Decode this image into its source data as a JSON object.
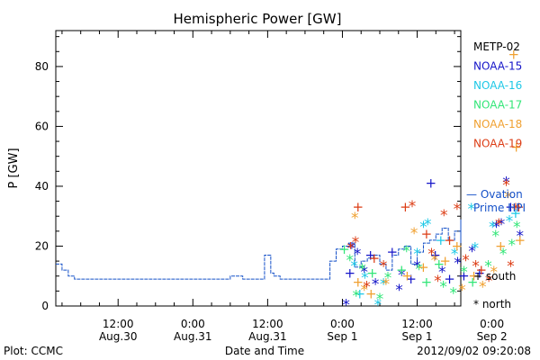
{
  "chart_data": {
    "type": "scatter",
    "title": "Hemispheric Power [GW]",
    "ylabel": "P [GW]",
    "xlabel": "Date and Time",
    "ylim": [
      0,
      92
    ],
    "yticks": [
      0,
      20,
      40,
      60,
      80
    ],
    "xlim_hours_from_aug30_0000": [
      2,
      67
    ],
    "xticks": [
      {
        "h": 12,
        "line1": "12:00",
        "line2": "Aug.30"
      },
      {
        "h": 24,
        "line1": "0:00",
        "line2": "Aug.31"
      },
      {
        "h": 36,
        "line1": "12:00",
        "line2": "Aug.31"
      },
      {
        "h": 48,
        "line1": "0:00",
        "line2": "Sep 1"
      },
      {
        "h": 60,
        "line1": "12:00",
        "line2": "Sep 1"
      },
      {
        "h": 72,
        "line1": "0:00",
        "line2": "Sep 2"
      }
    ],
    "legend": {
      "placement": "right",
      "entries": [
        {
          "name": "METP-02",
          "color": "#000000"
        },
        {
          "name": "NOAA-15",
          "color": "#1414c8"
        },
        {
          "name": "NOAA-16",
          "color": "#1ec8e6"
        },
        {
          "name": "NOAA-17",
          "color": "#32e678"
        },
        {
          "name": "NOAA-18",
          "color": "#f0a030"
        },
        {
          "name": "NOAA-19",
          "color": "#dc3c14"
        }
      ],
      "ovation_line1": "— Ovation",
      "ovation_line2": "Prime HPI",
      "ovation_color": "#1450c8",
      "south_label": "+ south",
      "north_label": "* north"
    },
    "ovation_series": {
      "name": "Ovation Prime HPI",
      "points": [
        [
          2,
          14
        ],
        [
          3,
          12
        ],
        [
          4,
          10
        ],
        [
          5,
          9
        ],
        [
          14,
          9
        ],
        [
          24,
          9
        ],
        [
          30,
          10
        ],
        [
          32,
          9
        ],
        [
          35,
          9
        ],
        [
          35.5,
          17
        ],
        [
          36.5,
          11
        ],
        [
          37,
          10
        ],
        [
          38,
          9
        ],
        [
          44,
          9
        ],
        [
          46,
          15
        ],
        [
          47,
          19
        ],
        [
          48,
          20
        ],
        [
          49,
          21
        ],
        [
          50,
          13
        ],
        [
          51,
          15
        ],
        [
          52,
          16
        ],
        [
          53,
          17
        ],
        [
          54,
          14
        ],
        [
          55,
          12
        ],
        [
          56,
          17
        ],
        [
          57,
          19
        ],
        [
          58,
          20
        ],
        [
          59,
          14
        ],
        [
          60,
          18
        ],
        [
          61,
          21
        ],
        [
          62,
          22
        ],
        [
          63,
          24
        ],
        [
          64,
          26
        ],
        [
          65,
          22
        ],
        [
          66,
          25
        ],
        [
          67,
          21
        ],
        [
          68,
          26
        ],
        [
          69,
          24
        ],
        [
          70,
          27
        ],
        [
          71,
          24
        ],
        [
          72,
          28
        ],
        [
          73,
          26
        ],
        [
          74,
          29
        ],
        [
          75,
          26
        ],
        [
          76,
          28
        ],
        [
          77,
          23
        ]
      ]
    },
    "scatter_points": [
      {
        "x": 48.6,
        "y": 1,
        "sat": "NOAA-15",
        "hemi": "north"
      },
      {
        "x": 49.2,
        "y": 11,
        "sat": "NOAA-15",
        "hemi": "south"
      },
      {
        "x": 49.5,
        "y": 20,
        "sat": "NOAA-15",
        "hemi": "north"
      },
      {
        "x": 50.4,
        "y": 18,
        "sat": "NOAA-15",
        "hemi": "north"
      },
      {
        "x": 51.5,
        "y": 12,
        "sat": "NOAA-15",
        "hemi": "north"
      },
      {
        "x": 52.5,
        "y": 17,
        "sat": "NOAA-15",
        "hemi": "south"
      },
      {
        "x": 53.3,
        "y": 8,
        "sat": "NOAA-15",
        "hemi": "north"
      },
      {
        "x": 56.0,
        "y": 18,
        "sat": "NOAA-15",
        "hemi": "south"
      },
      {
        "x": 57.1,
        "y": 6,
        "sat": "NOAA-15",
        "hemi": "north"
      },
      {
        "x": 57.5,
        "y": 11,
        "sat": "NOAA-15",
        "hemi": "north"
      },
      {
        "x": 59.0,
        "y": 9,
        "sat": "NOAA-15",
        "hemi": "south"
      },
      {
        "x": 60.0,
        "y": 14,
        "sat": "NOAA-15",
        "hemi": "north"
      },
      {
        "x": 62.2,
        "y": 41,
        "sat": "NOAA-15",
        "hemi": "south"
      },
      {
        "x": 62.9,
        "y": 17,
        "sat": "NOAA-15",
        "hemi": "south"
      },
      {
        "x": 64.0,
        "y": 12,
        "sat": "NOAA-15",
        "hemi": "north"
      },
      {
        "x": 65.2,
        "y": 9,
        "sat": "NOAA-15",
        "hemi": "south"
      },
      {
        "x": 66.5,
        "y": 15,
        "sat": "NOAA-15",
        "hemi": "north"
      },
      {
        "x": 67.5,
        "y": 10,
        "sat": "NOAA-15",
        "hemi": "south"
      },
      {
        "x": 68.8,
        "y": 19,
        "sat": "NOAA-15",
        "hemi": "north"
      },
      {
        "x": 70.0,
        "y": 11,
        "sat": "NOAA-15",
        "hemi": "south"
      },
      {
        "x": 72.7,
        "y": 27,
        "sat": "NOAA-15",
        "hemi": "north"
      },
      {
        "x": 73.5,
        "y": 28,
        "sat": "NOAA-15",
        "hemi": "north"
      },
      {
        "x": 74.3,
        "y": 42,
        "sat": "NOAA-15",
        "hemi": "north"
      },
      {
        "x": 75.0,
        "y": 33,
        "sat": "NOAA-15",
        "hemi": "south"
      },
      {
        "x": 76.5,
        "y": 24,
        "sat": "NOAA-15",
        "hemi": "north"
      },
      {
        "x": 49.9,
        "y": 14,
        "sat": "NOAA-16",
        "hemi": "north"
      },
      {
        "x": 50.8,
        "y": 4,
        "sat": "NOAA-16",
        "hemi": "south"
      },
      {
        "x": 51.6,
        "y": 10,
        "sat": "NOAA-16",
        "hemi": "north"
      },
      {
        "x": 53.7,
        "y": 1,
        "sat": "NOAA-16",
        "hemi": "north"
      },
      {
        "x": 54.6,
        "y": 8,
        "sat": "NOAA-16",
        "hemi": "north"
      },
      {
        "x": 60.0,
        "y": 18,
        "sat": "NOAA-16",
        "hemi": "north"
      },
      {
        "x": 61.0,
        "y": 27,
        "sat": "NOAA-16",
        "hemi": "north"
      },
      {
        "x": 61.7,
        "y": 28,
        "sat": "NOAA-16",
        "hemi": "north"
      },
      {
        "x": 63.8,
        "y": 22,
        "sat": "NOAA-16",
        "hemi": "south"
      },
      {
        "x": 66.0,
        "y": 18,
        "sat": "NOAA-16",
        "hemi": "north"
      },
      {
        "x": 68.7,
        "y": 33,
        "sat": "NOAA-16",
        "hemi": "north"
      },
      {
        "x": 69.3,
        "y": 20,
        "sat": "NOAA-16",
        "hemi": "north"
      },
      {
        "x": 72.1,
        "y": 27,
        "sat": "NOAA-16",
        "hemi": "north"
      },
      {
        "x": 74.8,
        "y": 29,
        "sat": "NOAA-16",
        "hemi": "north"
      },
      {
        "x": 75.8,
        "y": 31,
        "sat": "NOAA-16",
        "hemi": "south"
      },
      {
        "x": 48.3,
        "y": 19,
        "sat": "NOAA-17",
        "hemi": "south"
      },
      {
        "x": 49.2,
        "y": 16,
        "sat": "NOAA-17",
        "hemi": "north"
      },
      {
        "x": 50.2,
        "y": 4,
        "sat": "NOAA-17",
        "hemi": "north"
      },
      {
        "x": 51.2,
        "y": 13,
        "sat": "NOAA-17",
        "hemi": "north"
      },
      {
        "x": 52.8,
        "y": 11,
        "sat": "NOAA-17",
        "hemi": "south"
      },
      {
        "x": 54.0,
        "y": 3,
        "sat": "NOAA-17",
        "hemi": "north"
      },
      {
        "x": 55.3,
        "y": 10,
        "sat": "NOAA-17",
        "hemi": "north"
      },
      {
        "x": 57.5,
        "y": 12,
        "sat": "NOAA-17",
        "hemi": "south"
      },
      {
        "x": 58.3,
        "y": 19,
        "sat": "NOAA-17",
        "hemi": "north"
      },
      {
        "x": 60.3,
        "y": 13,
        "sat": "NOAA-17",
        "hemi": "north"
      },
      {
        "x": 61.5,
        "y": 8,
        "sat": "NOAA-17",
        "hemi": "south"
      },
      {
        "x": 63.5,
        "y": 14,
        "sat": "NOAA-17",
        "hemi": "south"
      },
      {
        "x": 64.2,
        "y": 7,
        "sat": "NOAA-17",
        "hemi": "north"
      },
      {
        "x": 65.8,
        "y": 5,
        "sat": "NOAA-17",
        "hemi": "north"
      },
      {
        "x": 67.5,
        "y": 12,
        "sat": "NOAA-17",
        "hemi": "north"
      },
      {
        "x": 68.9,
        "y": 8,
        "sat": "NOAA-17",
        "hemi": "south"
      },
      {
        "x": 71.4,
        "y": 14,
        "sat": "NOAA-17",
        "hemi": "north"
      },
      {
        "x": 72.6,
        "y": 24,
        "sat": "NOAA-17",
        "hemi": "north"
      },
      {
        "x": 73.8,
        "y": 18,
        "sat": "NOAA-17",
        "hemi": "north"
      },
      {
        "x": 75.2,
        "y": 21,
        "sat": "NOAA-17",
        "hemi": "north"
      },
      {
        "x": 76.0,
        "y": 27,
        "sat": "NOAA-17",
        "hemi": "north"
      },
      {
        "x": 50.0,
        "y": 30,
        "sat": "NOAA-18",
        "hemi": "north"
      },
      {
        "x": 50.5,
        "y": 8,
        "sat": "NOAA-18",
        "hemi": "south"
      },
      {
        "x": 51.5,
        "y": 6,
        "sat": "NOAA-18",
        "hemi": "north"
      },
      {
        "x": 52.6,
        "y": 4,
        "sat": "NOAA-18",
        "hemi": "south"
      },
      {
        "x": 55.0,
        "y": 8,
        "sat": "NOAA-18",
        "hemi": "north"
      },
      {
        "x": 58.4,
        "y": 10,
        "sat": "NOAA-18",
        "hemi": "south"
      },
      {
        "x": 59.5,
        "y": 25,
        "sat": "NOAA-18",
        "hemi": "north"
      },
      {
        "x": 61.0,
        "y": 13,
        "sat": "NOAA-18",
        "hemi": "south"
      },
      {
        "x": 62.8,
        "y": 16,
        "sat": "NOAA-18",
        "hemi": "north"
      },
      {
        "x": 64.5,
        "y": 15,
        "sat": "NOAA-18",
        "hemi": "south"
      },
      {
        "x": 66.4,
        "y": 20,
        "sat": "NOAA-18",
        "hemi": "south"
      },
      {
        "x": 67.2,
        "y": 6,
        "sat": "NOAA-18",
        "hemi": "north"
      },
      {
        "x": 69.1,
        "y": 10,
        "sat": "NOAA-18",
        "hemi": "south"
      },
      {
        "x": 70.5,
        "y": 7,
        "sat": "NOAA-18",
        "hemi": "north"
      },
      {
        "x": 72.3,
        "y": 12,
        "sat": "NOAA-18",
        "hemi": "north"
      },
      {
        "x": 73.4,
        "y": 20,
        "sat": "NOAA-18",
        "hemi": "south"
      },
      {
        "x": 74.6,
        "y": 37,
        "sat": "NOAA-18",
        "hemi": "north"
      },
      {
        "x": 75.5,
        "y": 84,
        "sat": "NOAA-18",
        "hemi": "south"
      },
      {
        "x": 75.9,
        "y": 53,
        "sat": "NOAA-18",
        "hemi": "south"
      },
      {
        "x": 76.5,
        "y": 22,
        "sat": "NOAA-18",
        "hemi": "south"
      },
      {
        "x": 49.3,
        "y": 20,
        "sat": "NOAA-19",
        "hemi": "north"
      },
      {
        "x": 50.1,
        "y": 22,
        "sat": "NOAA-19",
        "hemi": "north"
      },
      {
        "x": 50.5,
        "y": 33,
        "sat": "NOAA-19",
        "hemi": "south"
      },
      {
        "x": 51.9,
        "y": 7,
        "sat": "NOAA-19",
        "hemi": "north"
      },
      {
        "x": 53.1,
        "y": 16,
        "sat": "NOAA-19",
        "hemi": "south"
      },
      {
        "x": 54.6,
        "y": 14,
        "sat": "NOAA-19",
        "hemi": "north"
      },
      {
        "x": 58.1,
        "y": 33,
        "sat": "NOAA-19",
        "hemi": "south"
      },
      {
        "x": 59.2,
        "y": 34,
        "sat": "NOAA-19",
        "hemi": "north"
      },
      {
        "x": 61.5,
        "y": 24,
        "sat": "NOAA-19",
        "hemi": "south"
      },
      {
        "x": 62.3,
        "y": 18,
        "sat": "NOAA-19",
        "hemi": "north"
      },
      {
        "x": 63.3,
        "y": 9,
        "sat": "NOAA-19",
        "hemi": "north"
      },
      {
        "x": 64.3,
        "y": 31,
        "sat": "NOAA-19",
        "hemi": "north"
      },
      {
        "x": 65.2,
        "y": 22,
        "sat": "NOAA-19",
        "hemi": "south"
      },
      {
        "x": 66.4,
        "y": 33,
        "sat": "NOAA-19",
        "hemi": "north"
      },
      {
        "x": 67.8,
        "y": 16,
        "sat": "NOAA-19",
        "hemi": "north"
      },
      {
        "x": 69.4,
        "y": 14,
        "sat": "NOAA-19",
        "hemi": "north"
      },
      {
        "x": 70.3,
        "y": 12,
        "sat": "NOAA-19",
        "hemi": "south"
      },
      {
        "x": 71.5,
        "y": 9,
        "sat": "NOAA-19",
        "hemi": "north"
      },
      {
        "x": 73.1,
        "y": 28,
        "sat": "NOAA-19",
        "hemi": "north"
      },
      {
        "x": 74.3,
        "y": 41,
        "sat": "NOAA-19",
        "hemi": "north"
      },
      {
        "x": 75.0,
        "y": 14,
        "sat": "NOAA-19",
        "hemi": "north"
      },
      {
        "x": 75.8,
        "y": 33,
        "sat": "NOAA-19",
        "hemi": "north"
      },
      {
        "x": 76.3,
        "y": 33,
        "sat": "NOAA-19",
        "hemi": "south"
      }
    ]
  },
  "footer": {
    "plot_credit": "Plot: CCMC",
    "timestamp": "2012/09/02 09:20:08"
  }
}
